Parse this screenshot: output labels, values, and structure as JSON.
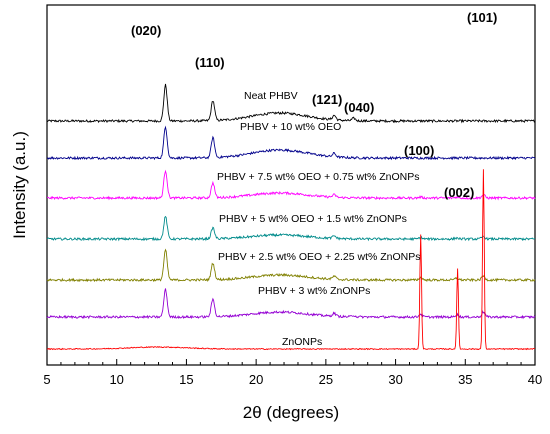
{
  "chart_data": {
    "type": "line",
    "xlabel": "2θ (degrees)",
    "ylabel": "Intensity (a.u.)",
    "xlim": [
      5,
      40
    ],
    "x_ticks": [
      "5",
      "10",
      "15",
      "20",
      "25",
      "30",
      "35",
      "40"
    ],
    "y_ticks_labeled": false,
    "grid": false,
    "legend": "labels placed directly on curves",
    "series": [
      {
        "name": "Neat PHBV",
        "color": "#000000",
        "peaks": [
          {
            "x": 13.5,
            "height": 0.72
          },
          {
            "x": 16.9,
            "height": 0.4
          },
          {
            "x": 21.7,
            "height": 0.16,
            "broad": true
          },
          {
            "x": 25.6,
            "height": 0.09
          },
          {
            "x": 27.0,
            "height": 0.05
          }
        ]
      },
      {
        "name": "PHBV + 10 wt% OEO",
        "color": "#00008b",
        "peaks": [
          {
            "x": 13.5,
            "height": 0.62
          },
          {
            "x": 16.9,
            "height": 0.4
          },
          {
            "x": 21.7,
            "height": 0.16,
            "broad": true
          },
          {
            "x": 25.6,
            "height": 0.07
          }
        ]
      },
      {
        "name": "PHBV + 7.5 wt% OEO + 0.75 wt% ZnONPs",
        "color": "#ff00ff",
        "peaks": [
          {
            "x": 13.5,
            "height": 0.55
          },
          {
            "x": 16.9,
            "height": 0.3
          },
          {
            "x": 21.7,
            "height": 0.1,
            "broad": true
          },
          {
            "x": 25.6,
            "height": 0.05
          },
          {
            "x": 31.8,
            "height": 0.02
          },
          {
            "x": 34.4,
            "height": 0.02
          },
          {
            "x": 36.3,
            "height": 0.06
          }
        ]
      },
      {
        "name": "PHBV + 5 wt% OEO + 1.5 wt% ZnONPs",
        "color": "#008b8b",
        "peaks": [
          {
            "x": 13.5,
            "height": 0.45
          },
          {
            "x": 16.9,
            "height": 0.22
          },
          {
            "x": 21.7,
            "height": 0.08,
            "broad": true
          },
          {
            "x": 25.6,
            "height": 0.05
          },
          {
            "x": 31.8,
            "height": 0.03
          },
          {
            "x": 34.4,
            "height": 0.02
          },
          {
            "x": 36.3,
            "height": 0.05
          }
        ]
      },
      {
        "name": "PHBV + 2.5 wt% OEO + 2.25 wt% ZnONPs",
        "color": "#808000",
        "peaks": [
          {
            "x": 13.5,
            "height": 0.6
          },
          {
            "x": 16.9,
            "height": 0.33
          },
          {
            "x": 21.7,
            "height": 0.1,
            "broad": true
          },
          {
            "x": 25.6,
            "height": 0.06
          },
          {
            "x": 31.8,
            "height": 0.05
          },
          {
            "x": 34.4,
            "height": 0.04
          },
          {
            "x": 36.3,
            "height": 0.08
          }
        ]
      },
      {
        "name": "PHBV + 3 wt% ZnONPs",
        "color": "#9400d3",
        "peaks": [
          {
            "x": 13.5,
            "height": 0.55
          },
          {
            "x": 16.9,
            "height": 0.35
          },
          {
            "x": 21.7,
            "height": 0.1,
            "broad": true
          },
          {
            "x": 25.6,
            "height": 0.06
          },
          {
            "x": 27.0,
            "height": 0.03
          },
          {
            "x": 31.8,
            "height": 0.06
          },
          {
            "x": 34.4,
            "height": 0.05
          },
          {
            "x": 36.3,
            "height": 0.1
          }
        ]
      },
      {
        "name": "ZnONPs",
        "color": "#ff0000",
        "peaks": [
          {
            "x": 31.8,
            "height": 2.3
          },
          {
            "x": 34.45,
            "height": 1.6
          },
          {
            "x": 36.3,
            "height": 3.6
          },
          {
            "x": 13.0,
            "height": 0.04,
            "broad": true
          }
        ]
      }
    ],
    "peak_annotations": [
      "(020)",
      "(110)",
      "(121)",
      "(040)",
      "(100)",
      "(002)",
      "(101)"
    ]
  }
}
